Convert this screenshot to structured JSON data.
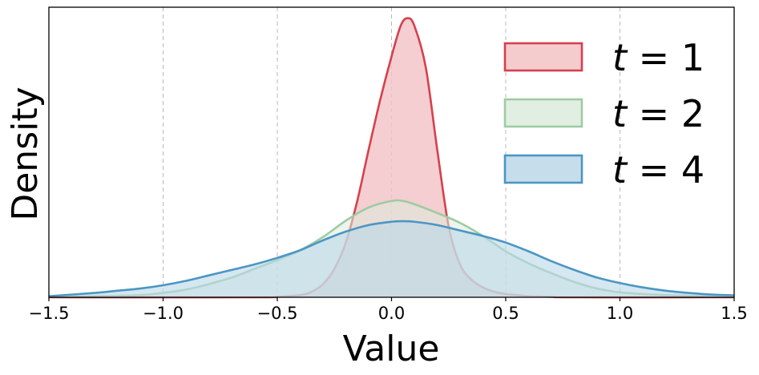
{
  "chart_data": {
    "type": "area",
    "title": "",
    "xlabel": "Value",
    "ylabel": "Density",
    "xlim": [
      -1.5,
      1.5
    ],
    "ylim": [
      0,
      2.65
    ],
    "x_ticks": [
      -1.5,
      -1.0,
      -0.5,
      0.0,
      0.5,
      1.0,
      1.5
    ],
    "x_tick_labels": [
      "−1.5",
      "−1.0",
      "−0.5",
      "0.0",
      "0.5",
      "1.0",
      "1.5"
    ],
    "y_ticks_shown": false,
    "grid": "vertical dashed at x ticks",
    "legend_position": "top-right",
    "series": [
      {
        "name": "t = 1",
        "legend_var": "t",
        "legend_rest": " = 1",
        "line_color": "#d6404e",
        "fill_color": "#f2c3c6",
        "fill_opacity": 0.82,
        "points": [
          [
            -1.5,
            0
          ],
          [
            -0.6,
            0
          ],
          [
            -0.5,
            0.005
          ],
          [
            -0.4,
            0.02
          ],
          [
            -0.35,
            0.05
          ],
          [
            -0.3,
            0.12
          ],
          [
            -0.25,
            0.26
          ],
          [
            -0.2,
            0.5
          ],
          [
            -0.15,
            0.88
          ],
          [
            -0.1,
            1.35
          ],
          [
            -0.05,
            1.8
          ],
          [
            0.0,
            2.2
          ],
          [
            0.04,
            2.48
          ],
          [
            0.07,
            2.55
          ],
          [
            0.1,
            2.48
          ],
          [
            0.15,
            2.1
          ],
          [
            0.2,
            1.35
          ],
          [
            0.25,
            0.65
          ],
          [
            0.3,
            0.3
          ],
          [
            0.35,
            0.16
          ],
          [
            0.4,
            0.09
          ],
          [
            0.45,
            0.05
          ],
          [
            0.5,
            0.03
          ],
          [
            0.55,
            0.02
          ],
          [
            0.6,
            0.01
          ],
          [
            0.7,
            0.004
          ],
          [
            0.8,
            0
          ],
          [
            1.5,
            0
          ]
        ]
      },
      {
        "name": "t = 2",
        "legend_var": "t",
        "legend_rest": " = 2",
        "line_color": "#9fcba3",
        "fill_color": "#dcebdd",
        "fill_opacity": 0.55,
        "points": [
          [
            -1.5,
            0.005
          ],
          [
            -1.3,
            0.01
          ],
          [
            -1.1,
            0.02
          ],
          [
            -1.0,
            0.04
          ],
          [
            -0.9,
            0.07
          ],
          [
            -0.8,
            0.12
          ],
          [
            -0.7,
            0.18
          ],
          [
            -0.6,
            0.26
          ],
          [
            -0.5,
            0.34
          ],
          [
            -0.4,
            0.43
          ],
          [
            -0.3,
            0.55
          ],
          [
            -0.2,
            0.7
          ],
          [
            -0.1,
            0.82
          ],
          [
            0.0,
            0.88
          ],
          [
            0.05,
            0.88
          ],
          [
            0.1,
            0.85
          ],
          [
            0.2,
            0.77
          ],
          [
            0.3,
            0.68
          ],
          [
            0.4,
            0.56
          ],
          [
            0.5,
            0.42
          ],
          [
            0.6,
            0.31
          ],
          [
            0.7,
            0.22
          ],
          [
            0.8,
            0.14
          ],
          [
            0.9,
            0.08
          ],
          [
            1.0,
            0.045
          ],
          [
            1.1,
            0.03
          ],
          [
            1.2,
            0.02
          ],
          [
            1.35,
            0.012
          ],
          [
            1.5,
            0.008
          ]
        ]
      },
      {
        "name": "t = 4",
        "legend_var": "t",
        "legend_rest": " = 4",
        "line_color": "#4b96c4",
        "fill_color": "#bcd8e9",
        "fill_opacity": 0.62,
        "points": [
          [
            -1.5,
            0.01
          ],
          [
            -1.3,
            0.04
          ],
          [
            -1.2,
            0.06
          ],
          [
            -1.1,
            0.08
          ],
          [
            -1.0,
            0.11
          ],
          [
            -0.9,
            0.15
          ],
          [
            -0.8,
            0.2
          ],
          [
            -0.7,
            0.25
          ],
          [
            -0.6,
            0.3
          ],
          [
            -0.5,
            0.36
          ],
          [
            -0.4,
            0.43
          ],
          [
            -0.3,
            0.52
          ],
          [
            -0.2,
            0.6
          ],
          [
            -0.1,
            0.66
          ],
          [
            0.0,
            0.69
          ],
          [
            0.05,
            0.695
          ],
          [
            0.1,
            0.69
          ],
          [
            0.2,
            0.66
          ],
          [
            0.3,
            0.61
          ],
          [
            0.4,
            0.56
          ],
          [
            0.5,
            0.5
          ],
          [
            0.6,
            0.42
          ],
          [
            0.7,
            0.33
          ],
          [
            0.8,
            0.25
          ],
          [
            0.9,
            0.18
          ],
          [
            1.0,
            0.13
          ],
          [
            1.1,
            0.09
          ],
          [
            1.2,
            0.06
          ],
          [
            1.3,
            0.04
          ],
          [
            1.4,
            0.025
          ],
          [
            1.5,
            0.018
          ]
        ]
      }
    ]
  }
}
